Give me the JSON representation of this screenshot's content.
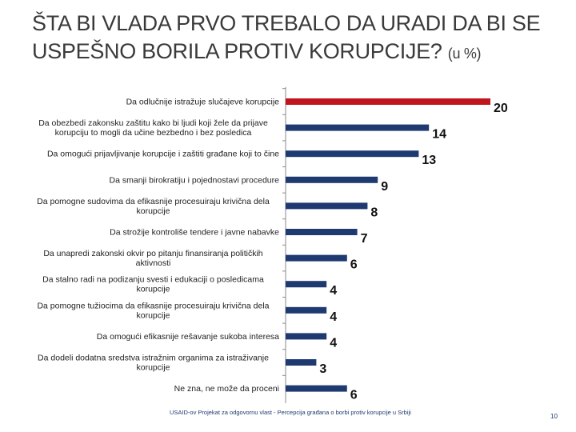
{
  "slide": {
    "title": "ŠTA BI VLADA PRVO TREBALO DA URADI DA BI SE USPEŠNO BORILA PROTIV KORUPCIJE?",
    "title_suffix": "(u %)",
    "footer": "USAID-ov Projekat za odgovornu vlast - Percepcija građana o borbi protiv korupcije u Srbiji",
    "page_number": "10"
  },
  "chart_data": {
    "type": "bar",
    "orientation": "horizontal",
    "categories": [
      "Da odlučnije istražuje slučajeve korupcije",
      "Da obezbedi zakonsku zaštitu kako bi ljudi koji žele da prijave korupciju to mogli da učine bezbedno i bez posledica",
      "Da omogući prijavljivanje korupcije i zaštiti građane koji to čine",
      "Da smanji birokratiju i pojednostavi procedure",
      "Da pomogne sudovima da efikasnije procesuiraju krivična dela korupcije",
      "Da strožije kontroliše tendere i javne nabavke",
      "Da unapredi zakonski okvir po pitanju finansiranja političkih aktivnosti",
      "Da stalno radi na podizanju svesti i edukaciji o posledicama korupcije",
      "Da pomogne tužiocima da efikasnije procesuiraju krivična dela korupcije",
      "Da omogući efikasnije rešavanje sukoba interesa",
      "Da dodeli dodatna sredstva istražnim organima za istraživanje korupcije",
      "Ne zna, ne može da proceni"
    ],
    "values": [
      20,
      14,
      13,
      9,
      8,
      7,
      6,
      4,
      4,
      4,
      3,
      6
    ],
    "value_labels": [
      "20",
      "14",
      "13",
      "9",
      "8",
      "7",
      "6",
      "4",
      "4",
      "4",
      "3",
      "6"
    ],
    "colors": {
      "highlight": "#c0151c",
      "default": "#1f3a70",
      "value_label": "#111111",
      "category_label": "#222222"
    },
    "highlight_index": 0,
    "xlim": [
      0,
      20
    ],
    "grid": false,
    "legend": "none"
  }
}
